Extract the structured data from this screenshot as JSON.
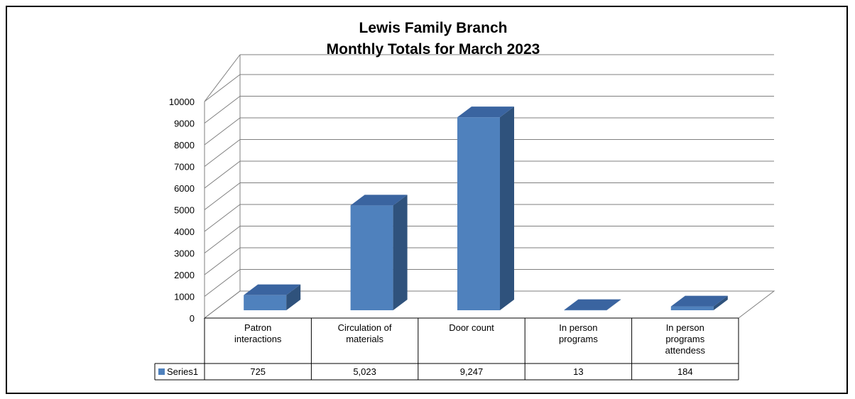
{
  "chart_data": {
    "type": "bar",
    "title_lines": [
      "Lewis Family Branch",
      "Monthly Totals for March 2023"
    ],
    "categories": [
      [
        "Patron",
        "interactions"
      ],
      [
        "Circulation of",
        "materials"
      ],
      [
        "Door count"
      ],
      [
        "In person",
        "programs"
      ],
      [
        "In person",
        "programs",
        "attendess"
      ]
    ],
    "series": [
      {
        "name": "Series1",
        "values": [
          725,
          5023,
          9247,
          13,
          184
        ],
        "labels": [
          "725",
          "5,023",
          "9,247",
          "13",
          "184"
        ],
        "color": "#4f81bd"
      }
    ],
    "yticks": [
      "0",
      "1000",
      "2000",
      "3000",
      "4000",
      "5000",
      "6000",
      "7000",
      "8000",
      "9000",
      "10000"
    ],
    "ylim": [
      0,
      10000
    ],
    "grid": true,
    "data_table": true,
    "colors": {
      "bar_front": "#4f81bd",
      "bar_side": "#2f527c",
      "bar_top": "#3a64a0",
      "grid": "#7f7f7f"
    }
  }
}
